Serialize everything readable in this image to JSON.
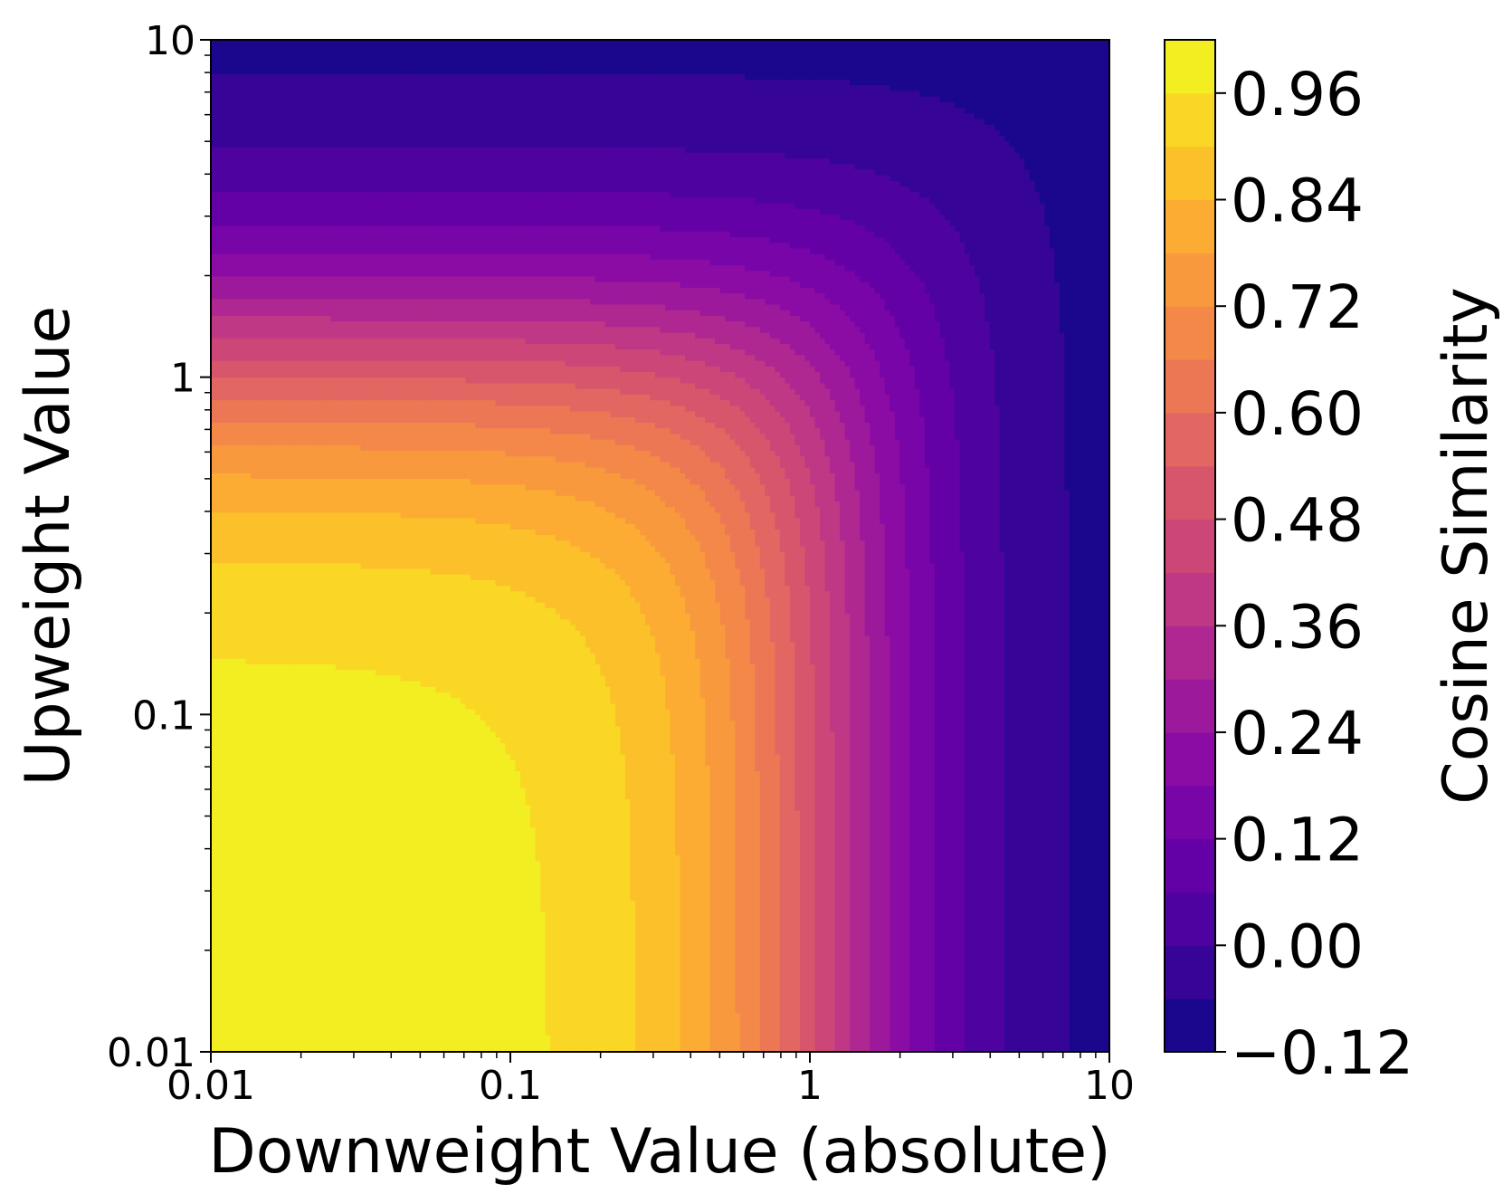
{
  "chart_data": {
    "type": "heatmap",
    "subtype": "filled-contour",
    "colormap": "plasma",
    "xlabel": "Downweight Value (absolute)",
    "ylabel": "Upweight Value",
    "colorbar_label": "Cosine Similarity",
    "xscale": "log",
    "yscale": "log",
    "xlim": [
      0.01,
      10
    ],
    "ylim": [
      0.01,
      10
    ],
    "x_ticks": [
      0.01,
      0.1,
      1,
      10
    ],
    "x_tick_labels": [
      "0.01",
      "0.1",
      "1",
      "10"
    ],
    "y_ticks": [
      0.01,
      0.1,
      1,
      10
    ],
    "y_tick_labels": [
      "0.01",
      "0.1",
      "1",
      "10"
    ],
    "colorbar_range": [
      -0.12,
      1.02
    ],
    "colorbar_level_step": 0.06,
    "colorbar_ticks": [
      -0.12,
      0.0,
      0.12,
      0.24,
      0.36,
      0.48,
      0.6,
      0.72,
      0.84,
      0.96
    ],
    "colorbar_tick_labels": [
      "−0.12",
      "0.00",
      "0.12",
      "0.24",
      "0.36",
      "0.48",
      "0.60",
      "0.72",
      "0.84",
      "0.96"
    ],
    "grid": false,
    "data_summary": {
      "description_values": "Cosine similarity is highest (~0.99) when both downweight and upweight values are small (<0.2) and decreases monotonically as either grows, reaching about -0.1 at downweight 10.",
      "samples": [
        {
          "x": 0.01,
          "y": 0.01,
          "value": 0.99
        },
        {
          "x": 0.5,
          "y": 0.01,
          "value": 0.8
        },
        {
          "x": 1,
          "y": 0.01,
          "value": 0.55
        },
        {
          "x": 3,
          "y": 0.01,
          "value": 0.12
        },
        {
          "x": 10,
          "y": 0.01,
          "value": -0.1
        },
        {
          "x": 0.01,
          "y": 0.5,
          "value": 0.86
        },
        {
          "x": 0.01,
          "y": 1,
          "value": 0.65
        },
        {
          "x": 0.01,
          "y": 3,
          "value": 0.3
        },
        {
          "x": 0.01,
          "y": 10,
          "value": 0.05
        },
        {
          "x": 1,
          "y": 1,
          "value": 0.36
        },
        {
          "x": 10,
          "y": 10,
          "value": -0.1
        }
      ]
    }
  }
}
